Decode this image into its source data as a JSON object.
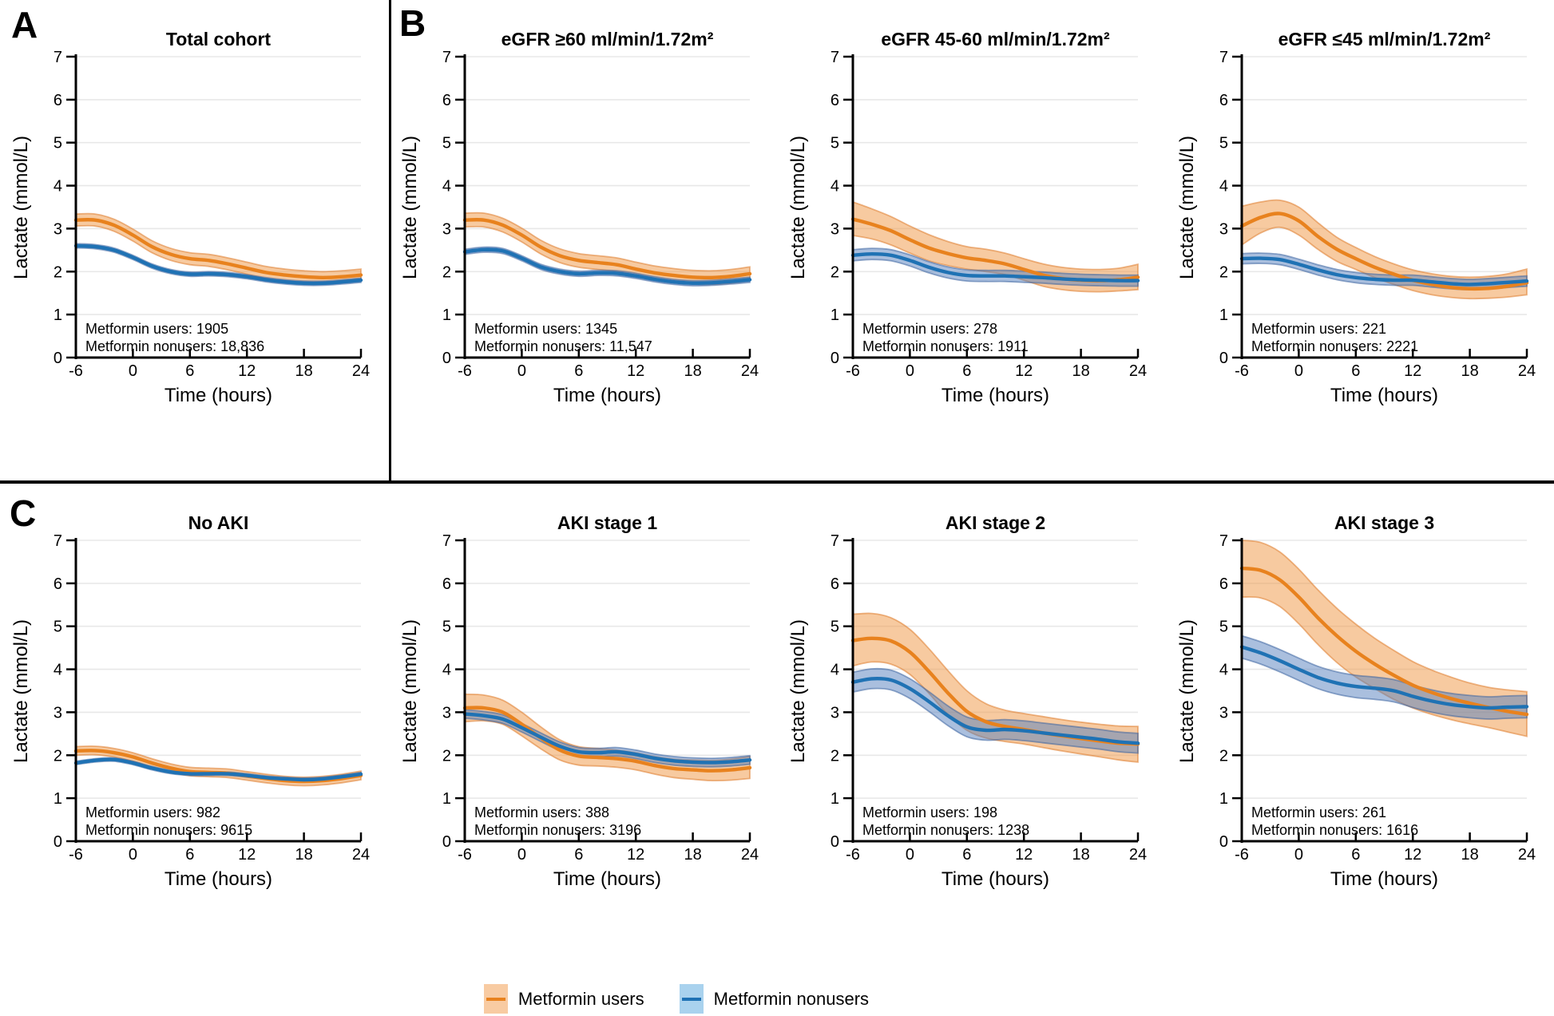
{
  "panels": [
    {
      "label": "A"
    },
    {
      "label": "B"
    },
    {
      "label": "C"
    }
  ],
  "legend": {
    "items": [
      {
        "label": "Metformin users",
        "line_color": "#E8821E",
        "swatch_color": "#F8CBA2"
      },
      {
        "label": "Metformin nonusers",
        "line_color": "#1F72B4",
        "swatch_color": "#A9D2EE"
      }
    ]
  },
  "style": {
    "users": {
      "line": "#E8821E",
      "band_fill": "rgba(240,150,66,0.50)",
      "band_edge": "rgba(222,124,44,0.55)"
    },
    "nonusers": {
      "line": "#1F72B4",
      "band_fill": "rgba(85,128,190,0.50)",
      "band_edge": "rgba(60,100,160,0.55)"
    },
    "grid_color": "#E8E8E8",
    "axis_color": "#000000"
  },
  "chart_data": [
    {
      "type": "line",
      "panel": "A",
      "title": "Total cohort",
      "xlabel": "Time (hours)",
      "ylabel": "Lactate (mmol/L)",
      "xlim": [
        -6,
        24
      ],
      "ylim": [
        0,
        7
      ],
      "xticks": [
        -6,
        0,
        6,
        12,
        18,
        24
      ],
      "yticks": [
        0,
        1,
        2,
        3,
        4,
        5,
        6,
        7
      ],
      "annotations": [
        "Metformin users: 1905",
        "Metformin nonusers: 18,836"
      ],
      "x": [
        -6,
        -4,
        -2,
        0,
        2,
        4,
        6,
        8,
        10,
        12,
        14,
        16,
        18,
        20,
        22,
        24
      ],
      "series": [
        {
          "key": "users",
          "name": "Metformin users",
          "y": [
            3.2,
            3.2,
            3.08,
            2.85,
            2.58,
            2.4,
            2.3,
            2.26,
            2.18,
            2.08,
            1.98,
            1.92,
            1.88,
            1.86,
            1.88,
            1.92
          ],
          "band": 0.14
        },
        {
          "key": "nonusers",
          "name": "Metformin nonusers",
          "y": [
            2.6,
            2.58,
            2.5,
            2.33,
            2.13,
            2.0,
            1.94,
            1.95,
            1.93,
            1.88,
            1.81,
            1.76,
            1.73,
            1.73,
            1.76,
            1.8
          ],
          "band": 0.05
        }
      ]
    },
    {
      "type": "line",
      "panel": "B",
      "title": "eGFR ≥60 ml/min/1.72m²",
      "xlabel": "Time (hours)",
      "ylabel": "Lactate (mmol/L)",
      "xlim": [
        -6,
        24
      ],
      "ylim": [
        0,
        7
      ],
      "xticks": [
        -6,
        0,
        6,
        12,
        18,
        24
      ],
      "yticks": [
        0,
        1,
        2,
        3,
        4,
        5,
        6,
        7
      ],
      "annotations": [
        "Metformin users: 1345",
        "Metformin nonusers: 11,547"
      ],
      "x": [
        -6,
        -4,
        -2,
        0,
        2,
        4,
        6,
        8,
        10,
        12,
        14,
        16,
        18,
        20,
        22,
        24
      ],
      "series": [
        {
          "key": "users",
          "name": "Metformin users",
          "y": [
            3.2,
            3.2,
            3.08,
            2.85,
            2.57,
            2.37,
            2.26,
            2.21,
            2.16,
            2.06,
            1.97,
            1.91,
            1.87,
            1.86,
            1.89,
            1.95
          ],
          "band": 0.16
        },
        {
          "key": "nonusers",
          "name": "Metformin nonusers",
          "y": [
            2.46,
            2.51,
            2.48,
            2.31,
            2.11,
            2.0,
            1.95,
            1.97,
            1.96,
            1.9,
            1.82,
            1.76,
            1.73,
            1.74,
            1.77,
            1.81
          ],
          "band": 0.06
        }
      ]
    },
    {
      "type": "line",
      "panel": "B",
      "title": "eGFR 45-60 ml/min/1.72m²",
      "xlabel": "Time (hours)",
      "ylabel": "Lactate (mmol/L)",
      "xlim": [
        -6,
        24
      ],
      "ylim": [
        0,
        7
      ],
      "xticks": [
        -6,
        0,
        6,
        12,
        18,
        24
      ],
      "yticks": [
        0,
        1,
        2,
        3,
        4,
        5,
        6,
        7
      ],
      "annotations": [
        "Metformin users: 278",
        "Metformin nonusers: 1911"
      ],
      "x": [
        -6,
        -4,
        -2,
        0,
        2,
        4,
        6,
        8,
        10,
        12,
        14,
        16,
        18,
        20,
        22,
        24
      ],
      "series": [
        {
          "key": "users",
          "name": "Metformin users",
          "y": [
            3.22,
            3.1,
            2.95,
            2.74,
            2.55,
            2.42,
            2.32,
            2.26,
            2.18,
            2.05,
            1.92,
            1.84,
            1.8,
            1.79,
            1.81,
            1.87
          ],
          "hi": [
            3.62,
            3.46,
            3.28,
            3.06,
            2.86,
            2.7,
            2.58,
            2.52,
            2.43,
            2.3,
            2.18,
            2.1,
            2.06,
            2.05,
            2.08,
            2.17
          ],
          "lo": [
            2.84,
            2.76,
            2.62,
            2.43,
            2.25,
            2.14,
            2.06,
            2.0,
            1.93,
            1.8,
            1.66,
            1.58,
            1.54,
            1.53,
            1.55,
            1.58
          ]
        },
        {
          "key": "nonusers",
          "name": "Metformin nonusers",
          "y": [
            2.38,
            2.41,
            2.38,
            2.26,
            2.1,
            1.98,
            1.91,
            1.9,
            1.9,
            1.88,
            1.86,
            1.83,
            1.81,
            1.8,
            1.79,
            1.79
          ],
          "band": 0.13
        }
      ]
    },
    {
      "type": "line",
      "panel": "B",
      "title": "eGFR ≤45 ml/min/1.72m²",
      "xlabel": "Time (hours)",
      "ylabel": "Lactate (mmol/L)",
      "xlim": [
        -6,
        24
      ],
      "ylim": [
        0,
        7
      ],
      "xticks": [
        -6,
        0,
        6,
        12,
        18,
        24
      ],
      "yticks": [
        0,
        1,
        2,
        3,
        4,
        5,
        6,
        7
      ],
      "annotations": [
        "Metformin users: 221",
        "Metformin nonusers: 2221"
      ],
      "x": [
        -6,
        -4,
        -2,
        0,
        2,
        4,
        6,
        8,
        10,
        12,
        14,
        16,
        18,
        20,
        22,
        24
      ],
      "series": [
        {
          "key": "users",
          "name": "Metformin users",
          "y": [
            3.06,
            3.26,
            3.35,
            3.18,
            2.82,
            2.52,
            2.3,
            2.1,
            1.94,
            1.8,
            1.7,
            1.63,
            1.6,
            1.61,
            1.66,
            1.74
          ],
          "hi": [
            3.52,
            3.62,
            3.66,
            3.5,
            3.14,
            2.8,
            2.56,
            2.35,
            2.18,
            2.04,
            1.95,
            1.89,
            1.87,
            1.89,
            1.95,
            2.06
          ],
          "lo": [
            2.62,
            2.9,
            3.03,
            2.85,
            2.52,
            2.24,
            2.05,
            1.86,
            1.7,
            1.56,
            1.46,
            1.4,
            1.37,
            1.38,
            1.41,
            1.46
          ]
        },
        {
          "key": "nonusers",
          "name": "Metformin nonusers",
          "y": [
            2.3,
            2.31,
            2.28,
            2.17,
            2.04,
            1.93,
            1.86,
            1.82,
            1.8,
            1.8,
            1.76,
            1.72,
            1.7,
            1.72,
            1.75,
            1.78
          ],
          "band": 0.12
        }
      ]
    },
    {
      "type": "line",
      "panel": "C",
      "title": "No AKI",
      "xlabel": "Time (hours)",
      "ylabel": "Lactate (mmol/L)",
      "xlim": [
        -6,
        24
      ],
      "ylim": [
        0,
        7
      ],
      "xticks": [
        -6,
        0,
        6,
        12,
        18,
        24
      ],
      "yticks": [
        0,
        1,
        2,
        3,
        4,
        5,
        6,
        7
      ],
      "annotations": [
        "Metformin users: 982",
        "Metformin nonusers: 9615"
      ],
      "x": [
        -6,
        -4,
        -2,
        0,
        2,
        4,
        6,
        8,
        10,
        12,
        14,
        16,
        18,
        20,
        22,
        24
      ],
      "series": [
        {
          "key": "users",
          "name": "Metformin users",
          "y": [
            2.1,
            2.11,
            2.06,
            1.96,
            1.82,
            1.7,
            1.62,
            1.6,
            1.58,
            1.52,
            1.46,
            1.41,
            1.39,
            1.41,
            1.46,
            1.53
          ],
          "band": 0.1
        },
        {
          "key": "nonusers",
          "name": "Metformin nonusers",
          "y": [
            1.82,
            1.88,
            1.9,
            1.82,
            1.7,
            1.61,
            1.57,
            1.57,
            1.57,
            1.53,
            1.48,
            1.45,
            1.43,
            1.45,
            1.5,
            1.56
          ],
          "band": 0.04
        }
      ]
    },
    {
      "type": "line",
      "panel": "C",
      "title": "AKI stage 1",
      "xlabel": "Time (hours)",
      "ylabel": "Lactate (mmol/L)",
      "xlim": [
        -6,
        24
      ],
      "ylim": [
        0,
        7
      ],
      "xticks": [
        -6,
        0,
        6,
        12,
        18,
        24
      ],
      "yticks": [
        0,
        1,
        2,
        3,
        4,
        5,
        6,
        7
      ],
      "annotations": [
        "Metformin users: 388",
        "Metformin nonusers: 3196"
      ],
      "x": [
        -6,
        -4,
        -2,
        0,
        2,
        4,
        6,
        8,
        10,
        12,
        14,
        16,
        18,
        20,
        22,
        24
      ],
      "series": [
        {
          "key": "users",
          "name": "Metformin users",
          "y": [
            3.1,
            3.1,
            3.0,
            2.72,
            2.4,
            2.12,
            1.98,
            1.95,
            1.92,
            1.86,
            1.76,
            1.69,
            1.66,
            1.64,
            1.66,
            1.71
          ],
          "hi": [
            3.42,
            3.4,
            3.28,
            3.0,
            2.66,
            2.36,
            2.2,
            2.16,
            2.12,
            2.06,
            1.97,
            1.91,
            1.89,
            1.88,
            1.91,
            1.97
          ],
          "lo": [
            2.78,
            2.8,
            2.72,
            2.45,
            2.15,
            1.89,
            1.77,
            1.75,
            1.72,
            1.66,
            1.56,
            1.48,
            1.44,
            1.41,
            1.42,
            1.46
          ]
        },
        {
          "key": "nonusers",
          "name": "Metformin nonusers",
          "y": [
            2.96,
            2.92,
            2.84,
            2.64,
            2.42,
            2.21,
            2.08,
            2.06,
            2.08,
            2.02,
            1.93,
            1.87,
            1.84,
            1.83,
            1.85,
            1.89
          ],
          "band": 0.1
        }
      ]
    },
    {
      "type": "line",
      "panel": "C",
      "title": "AKI stage 2",
      "xlabel": "Time (hours)",
      "ylabel": "Lactate (mmol/L)",
      "xlim": [
        -6,
        24
      ],
      "ylim": [
        0,
        7
      ],
      "xticks": [
        -6,
        0,
        6,
        12,
        18,
        24
      ],
      "yticks": [
        0,
        1,
        2,
        3,
        4,
        5,
        6,
        7
      ],
      "annotations": [
        "Metformin users: 198",
        "Metformin nonusers: 1238"
      ],
      "x": [
        -6,
        -4,
        -2,
        0,
        2,
        4,
        6,
        8,
        10,
        12,
        14,
        16,
        18,
        20,
        22,
        24
      ],
      "series": [
        {
          "key": "users",
          "name": "Metformin users",
          "y": [
            4.67,
            4.72,
            4.66,
            4.4,
            3.95,
            3.45,
            3.02,
            2.78,
            2.67,
            2.6,
            2.52,
            2.45,
            2.39,
            2.33,
            2.28,
            2.26
          ],
          "hi": [
            5.28,
            5.3,
            5.2,
            4.93,
            4.48,
            3.97,
            3.5,
            3.2,
            3.05,
            2.97,
            2.9,
            2.83,
            2.77,
            2.72,
            2.68,
            2.67
          ],
          "lo": [
            4.08,
            4.17,
            4.12,
            3.88,
            3.44,
            2.95,
            2.58,
            2.4,
            2.32,
            2.26,
            2.18,
            2.1,
            2.03,
            1.96,
            1.89,
            1.84
          ]
        },
        {
          "key": "nonusers",
          "name": "Metformin nonusers",
          "y": [
            3.7,
            3.78,
            3.75,
            3.55,
            3.25,
            2.92,
            2.66,
            2.58,
            2.6,
            2.57,
            2.52,
            2.47,
            2.42,
            2.37,
            2.31,
            2.28
          ],
          "band": 0.23
        }
      ]
    },
    {
      "type": "line",
      "panel": "C",
      "title": "AKI stage 3",
      "xlabel": "Time (hours)",
      "ylabel": "Lactate (mmol/L)",
      "xlim": [
        -6,
        24
      ],
      "ylim": [
        0,
        7
      ],
      "xticks": [
        -6,
        0,
        6,
        12,
        18,
        24
      ],
      "yticks": [
        0,
        1,
        2,
        3,
        4,
        5,
        6,
        7
      ],
      "annotations": [
        "Metformin users: 261",
        "Metformin nonusers: 1616"
      ],
      "x": [
        -6,
        -4,
        -2,
        0,
        2,
        4,
        6,
        8,
        10,
        12,
        14,
        16,
        18,
        20,
        22,
        24
      ],
      "series": [
        {
          "key": "users",
          "name": "Metformin users",
          "y": [
            6.35,
            6.3,
            6.08,
            5.68,
            5.2,
            4.78,
            4.42,
            4.12,
            3.86,
            3.63,
            3.46,
            3.32,
            3.21,
            3.11,
            3.02,
            2.95
          ],
          "hi": [
            7.0,
            6.95,
            6.73,
            6.33,
            5.85,
            5.42,
            5.05,
            4.72,
            4.44,
            4.18,
            3.98,
            3.82,
            3.68,
            3.58,
            3.52,
            3.48
          ],
          "lo": [
            5.68,
            5.66,
            5.46,
            5.06,
            4.58,
            4.16,
            3.82,
            3.55,
            3.3,
            3.1,
            2.95,
            2.83,
            2.73,
            2.64,
            2.54,
            2.44
          ]
        },
        {
          "key": "nonusers",
          "name": "Metformin nonusers",
          "y": [
            4.52,
            4.38,
            4.2,
            4.0,
            3.81,
            3.68,
            3.6,
            3.56,
            3.5,
            3.37,
            3.26,
            3.18,
            3.13,
            3.1,
            3.12,
            3.13
          ],
          "band": 0.26
        }
      ]
    }
  ]
}
